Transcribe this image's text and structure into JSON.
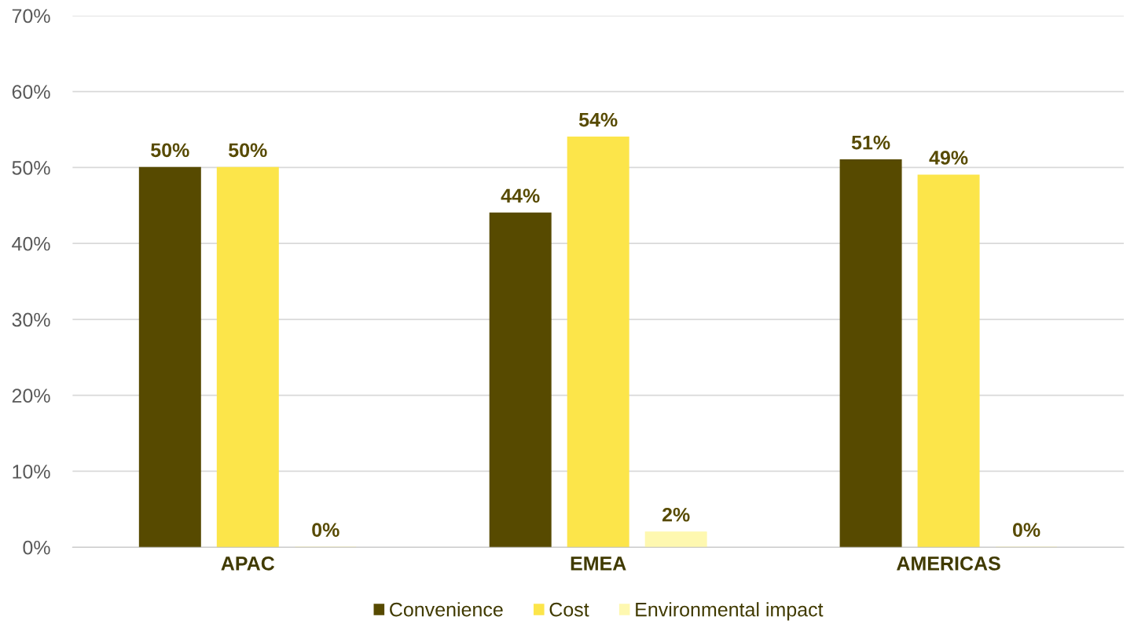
{
  "chart_data": {
    "type": "bar",
    "categories": [
      "APAC",
      "EMEA",
      "AMERICAS"
    ],
    "series": [
      {
        "name": "Convenience",
        "color": "#574a00",
        "values": [
          50,
          44,
          51
        ],
        "value_labels": [
          "50%",
          "44%",
          "51%"
        ]
      },
      {
        "name": "Cost",
        "color": "#fce54a",
        "values": [
          50,
          54,
          49
        ],
        "value_labels": [
          "50%",
          "54%",
          "49%"
        ]
      },
      {
        "name": "Environmental impact",
        "color": "#fef8b0",
        "values": [
          0,
          2,
          0
        ],
        "value_labels": [
          "0%",
          "2%",
          "0%"
        ]
      }
    ],
    "ylim": [
      0,
      70
    ],
    "yticks": [
      {
        "value": 0,
        "label": "0%"
      },
      {
        "value": 10,
        "label": "10%"
      },
      {
        "value": 20,
        "label": "20%"
      },
      {
        "value": 30,
        "label": "30%"
      },
      {
        "value": 40,
        "label": "40%"
      },
      {
        "value": 50,
        "label": "50%"
      },
      {
        "value": 60,
        "label": "60%"
      },
      {
        "value": 70,
        "label": "70%"
      }
    ],
    "grid": "y",
    "legend": "bottom"
  }
}
